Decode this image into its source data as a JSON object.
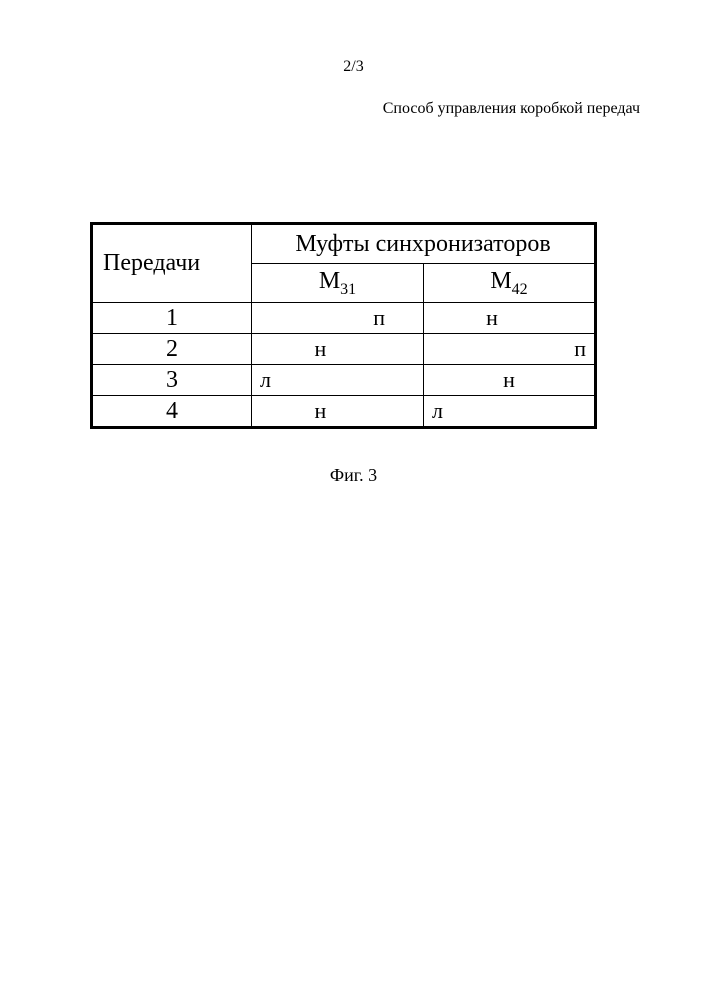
{
  "page": {
    "number": "2/3",
    "title": "Способ управления коробкой передач",
    "caption": "Фиг. 3"
  },
  "table": {
    "header": {
      "gears": "Передачи",
      "couplings": "Муфты синхронизаторов",
      "m31_base": "M",
      "m31_sub": "31",
      "m42_base": "M",
      "m42_sub": "42"
    },
    "rows": [
      {
        "gear": "1",
        "m31": "п",
        "m42": "н"
      },
      {
        "gear": "2",
        "m31": "н",
        "m42": "п"
      },
      {
        "gear": "3",
        "m31": "л",
        "m42": "н"
      },
      {
        "gear": "4",
        "m31": "н",
        "m42": "л"
      }
    ]
  },
  "colors": {
    "text": "#000000",
    "background": "#ffffff",
    "border": "#000000"
  }
}
